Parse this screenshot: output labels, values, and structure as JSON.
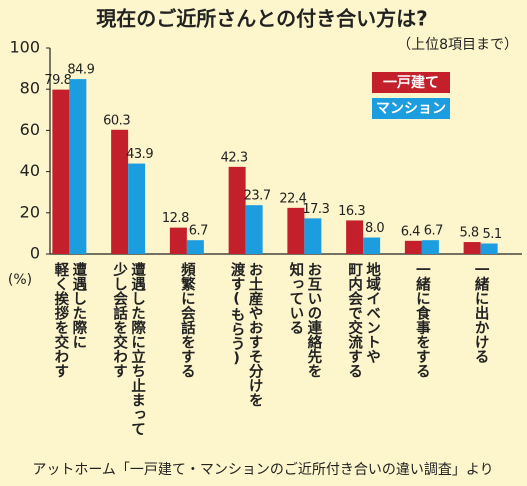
{
  "chart_data": {
    "type": "bar",
    "title": "現在のご近所さんとの付き合い方は?",
    "subtitle": "（上位8項目まで）",
    "y_label": "(%)",
    "source": "アットホーム「一戸建て・マンションのご近所付き合いの違い調査」より",
    "categories": [
      "遭遇した際に\n軽く挨拶を交わす",
      "遭遇した際に立ち止まって\n少し会話を交わす",
      "頻繁に会話をする",
      "お土産やおすそ分けを\n渡す(もらう)",
      "お互いの連絡先を\n知っている",
      "地域イベントや\n町内会で交流する",
      "一緒に食事をする",
      "一緒に出かける"
    ],
    "series": [
      {
        "name": "一戸建て",
        "color": "#c4202b",
        "values": [
          79.8,
          60.3,
          12.8,
          42.3,
          22.4,
          16.3,
          6.4,
          5.8
        ],
        "value_labels": [
          "79.8",
          "60.3",
          "12.8",
          "42.3",
          "22.4",
          "16.3",
          "6.4",
          "5.8"
        ]
      },
      {
        "name": "マンション",
        "color": "#1c9de0",
        "values": [
          84.9,
          43.9,
          6.7,
          23.7,
          17.3,
          8.0,
          6.7,
          5.1
        ],
        "value_labels": [
          "84.9",
          "43.9",
          "6.7",
          "23.7",
          "17.3",
          "8.0",
          "6.7",
          "5.1"
        ]
      }
    ],
    "ylim": [
      0,
      100
    ],
    "yticks": [
      0,
      20,
      40,
      60,
      80,
      100
    ],
    "grid": false
  }
}
